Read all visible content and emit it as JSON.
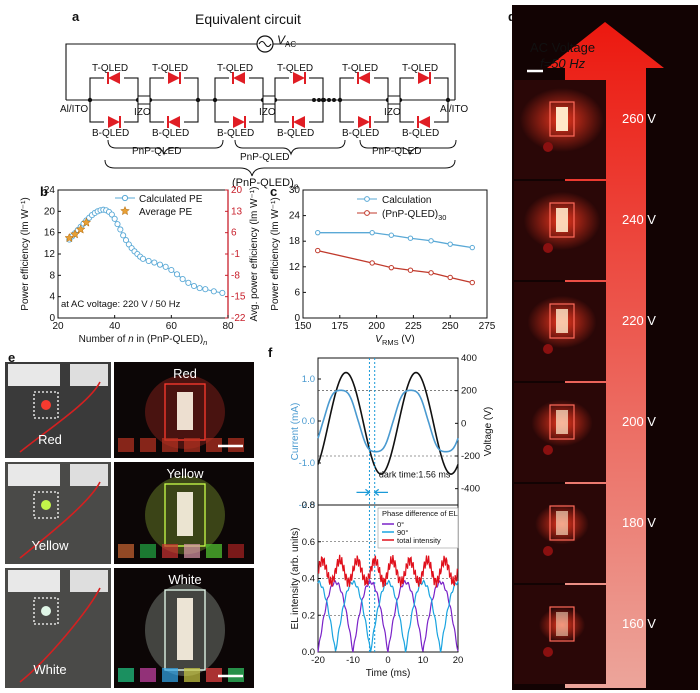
{
  "panels": {
    "a": {
      "letter": "a",
      "title": "Equivalent circuit",
      "vac": "V",
      "vac_sub": "AC",
      "t_qled": "T-QLED",
      "b_qled": "B-QLED",
      "izo": "IZO",
      "al_ito": "Al/ITO",
      "pnp": "PnP-QLED",
      "pnp_n_main": "(PnP-QLED)",
      "pnp_n_sub": "n"
    },
    "b": {
      "letter": "b",
      "ylabel_left": "Power efficiency (lm W⁻¹)",
      "ylabel_right": "Avg. power efficiency (lm W⁻¹)",
      "xlabel_main": "Number of ",
      "xlabel_n": "n",
      "xlabel_rest": " in (PnP-QLED)",
      "xlabel_sub": "n",
      "legend_calc": "Calculated PE",
      "legend_avg": "Average PE",
      "annotation": "at AC voltage: 220 V / 50 Hz",
      "colors": {
        "calc": "#5aa9d6",
        "avg": "#e8a035",
        "right_axis": "#c8202c"
      }
    },
    "c": {
      "letter": "c",
      "ylabel": "Power efficiency (lm W⁻¹)",
      "xlabel_main": "V",
      "xlabel_sub": "RMS",
      "xlabel_unit": " (V)",
      "legend_calc": "Calculation",
      "legend_pnp_main": "(PnP-QLED)",
      "legend_pnp_sub": "30",
      "colors": {
        "calc": "#5aa9d6",
        "pnp": "#c0392b"
      }
    },
    "d": {
      "letter": "d",
      "title_line1": "AC Voltage",
      "title_line2": "f=50 Hz",
      "voltages": [
        "260 V",
        "240 V",
        "220 V",
        "200 V",
        "180 V",
        "160 V"
      ]
    },
    "e": {
      "letter": "e",
      "rows": [
        {
          "left_label": "Red",
          "right_label": "Red",
          "glow": "#ff3a2e"
        },
        {
          "left_label": "Yellow",
          "right_label": "Yellow",
          "glow": "#c9ff4a"
        },
        {
          "left_label": "White",
          "right_label": "White",
          "glow": "#e8fff0"
        }
      ]
    },
    "f": {
      "letter": "f",
      "ylabel_current": "Current (mA)",
      "ylabel_voltage": "Voltage (V)",
      "dark_time": "dark time:1.56 ms",
      "ylabel_el": "EL intensity (arb. units)",
      "xlabel": "Time (ms)",
      "legend_title": "Phase difference of EL",
      "legend_items": [
        "0°",
        "90°",
        "total intensity"
      ],
      "colors": {
        "current": "#4a9ad0",
        "voltage": "#111111",
        "el0": "#7a22c8",
        "el90": "#1aa4e0",
        "total": "#e0101c"
      }
    }
  },
  "chart_data": [
    {
      "panel": "b",
      "type": "scatter",
      "xlabel": "Number of n in (PnP-QLED)n",
      "ylabel": "Power efficiency (lm W⁻¹)",
      "ylabel_right": "Avg. power efficiency (lm W⁻¹)",
      "xlim": [
        20,
        80
      ],
      "ylim": [
        0,
        24
      ],
      "ylim_right": [
        -22,
        20
      ],
      "xticks": [
        20,
        40,
        60,
        80
      ],
      "yticks": [
        0,
        4,
        8,
        12,
        16,
        20,
        24
      ],
      "yticks_right": [
        -22,
        -15,
        -8,
        -1,
        6,
        13,
        20
      ],
      "series": [
        {
          "name": "Calculated PE",
          "x": [
            24,
            25,
            26,
            27,
            28,
            29,
            30,
            31,
            32,
            33,
            34,
            35,
            36,
            37,
            38,
            39,
            40,
            41,
            42,
            43,
            44,
            45,
            46,
            47,
            48,
            49,
            50,
            52,
            54,
            56,
            58,
            60,
            62,
            64,
            66,
            68,
            70,
            72,
            75,
            78
          ],
          "y": [
            14.7,
            15.3,
            15.9,
            16.5,
            17.1,
            17.7,
            18.3,
            18.8,
            19.3,
            19.7,
            20.0,
            20.2,
            20.3,
            20.2,
            19.9,
            19.4,
            18.6,
            17.6,
            16.6,
            15.5,
            14.6,
            13.8,
            13.1,
            12.5,
            12.0,
            11.5,
            11.1,
            10.7,
            10.4,
            10.0,
            9.6,
            9.0,
            8.2,
            7.3,
            6.6,
            6.0,
            5.6,
            5.4,
            5.0,
            4.7
          ]
        },
        {
          "name": "Average PE",
          "x": [
            24,
            26,
            28,
            30
          ],
          "y": [
            15.0,
            15.7,
            16.6,
            17.9
          ]
        }
      ]
    },
    {
      "panel": "c",
      "type": "line",
      "xlabel": "VRMS (V)",
      "ylabel": "Power efficiency (lm W⁻¹)",
      "xlim": [
        150,
        275
      ],
      "ylim": [
        0,
        30
      ],
      "xticks": [
        150,
        175,
        200,
        225,
        250,
        275
      ],
      "yticks": [
        0,
        6,
        12,
        18,
        24,
        30
      ],
      "x": [
        160,
        197,
        210,
        223,
        237,
        250,
        265
      ],
      "series": [
        {
          "name": "Calculation",
          "values": [
            20.0,
            20.0,
            19.4,
            18.7,
            18.1,
            17.3,
            16.5
          ]
        },
        {
          "name": "(PnP-QLED)30",
          "values": [
            15.8,
            12.9,
            11.8,
            11.2,
            10.6,
            9.5,
            8.3
          ]
        }
      ]
    },
    {
      "panel": "f-top",
      "type": "line",
      "ylabel": "Current (mA)",
      "ylabel_right": "Voltage (V)",
      "xlim": [
        -20,
        20
      ],
      "ylim": [
        -2.0,
        1.5
      ],
      "ylim_right": [
        -500,
        400
      ],
      "yticks": [
        -2.0,
        -1.0,
        0,
        1.0
      ],
      "yticks_right": [
        -400,
        -200,
        0,
        200,
        400
      ],
      "annotation": "dark time:1.56 ms",
      "series": [
        {
          "name": "Current",
          "description": "periodic, amplitude ~0.9 mA"
        },
        {
          "name": "Voltage",
          "amplitude": 311,
          "frequency_hz": 50
        }
      ]
    },
    {
      "panel": "f-bottom",
      "type": "line",
      "xlabel": "Time (ms)",
      "ylabel": "EL intensity (arb. units)",
      "xlim": [
        -20,
        20
      ],
      "ylim": [
        0,
        0.8
      ],
      "xticks": [
        -20,
        -10,
        0,
        10,
        20
      ],
      "yticks": [
        0,
        0.2,
        0.4,
        0.6,
        0.8
      ],
      "legend_title": "Phase difference of EL",
      "series": [
        {
          "name": "0°",
          "min": 0.0,
          "max": 0.38
        },
        {
          "name": "90°",
          "min": 0.0,
          "max": 0.38
        },
        {
          "name": "total intensity",
          "min": 0.35,
          "max": 0.53
        }
      ]
    }
  ]
}
